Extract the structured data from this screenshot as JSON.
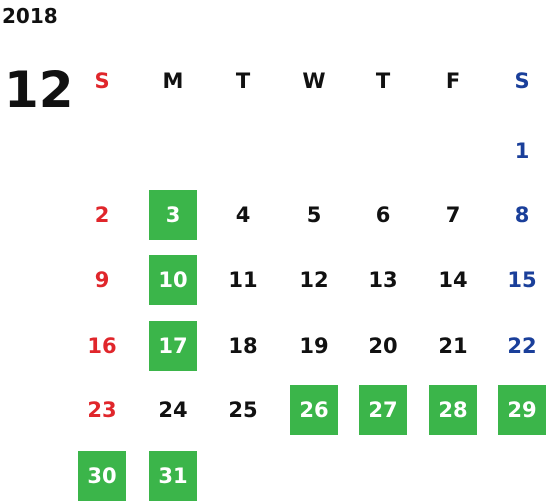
{
  "year": "2018",
  "month": "12",
  "weekdays": [
    "S",
    "M",
    "T",
    "W",
    "T",
    "F",
    "S"
  ],
  "colors": {
    "sunday": "#e0262b",
    "saturday": "#1a3f9a",
    "weekday": "#111111",
    "marked_bg": "#3bb54a",
    "marked_text": "#ffffff"
  },
  "weeks": [
    [
      null,
      null,
      null,
      null,
      null,
      null,
      {
        "day": 1,
        "marked": false
      }
    ],
    [
      {
        "day": 2,
        "marked": false
      },
      {
        "day": 3,
        "marked": true
      },
      {
        "day": 4,
        "marked": false
      },
      {
        "day": 5,
        "marked": false
      },
      {
        "day": 6,
        "marked": false
      },
      {
        "day": 7,
        "marked": false
      },
      {
        "day": 8,
        "marked": false
      }
    ],
    [
      {
        "day": 9,
        "marked": false
      },
      {
        "day": 10,
        "marked": true
      },
      {
        "day": 11,
        "marked": false
      },
      {
        "day": 12,
        "marked": false
      },
      {
        "day": 13,
        "marked": false
      },
      {
        "day": 14,
        "marked": false
      },
      {
        "day": 15,
        "marked": false
      }
    ],
    [
      {
        "day": 16,
        "marked": false
      },
      {
        "day": 17,
        "marked": true
      },
      {
        "day": 18,
        "marked": false
      },
      {
        "day": 19,
        "marked": false
      },
      {
        "day": 20,
        "marked": false
      },
      {
        "day": 21,
        "marked": false
      },
      {
        "day": 22,
        "marked": false
      }
    ],
    [
      {
        "day": 23,
        "marked": false
      },
      {
        "day": 24,
        "marked": false
      },
      {
        "day": 25,
        "marked": false
      },
      {
        "day": 26,
        "marked": true
      },
      {
        "day": 27,
        "marked": true
      },
      {
        "day": 28,
        "marked": true
      },
      {
        "day": 29,
        "marked": true
      }
    ],
    [
      {
        "day": 30,
        "marked": true
      },
      {
        "day": 31,
        "marked": true
      },
      null,
      null,
      null,
      null,
      null
    ]
  ]
}
